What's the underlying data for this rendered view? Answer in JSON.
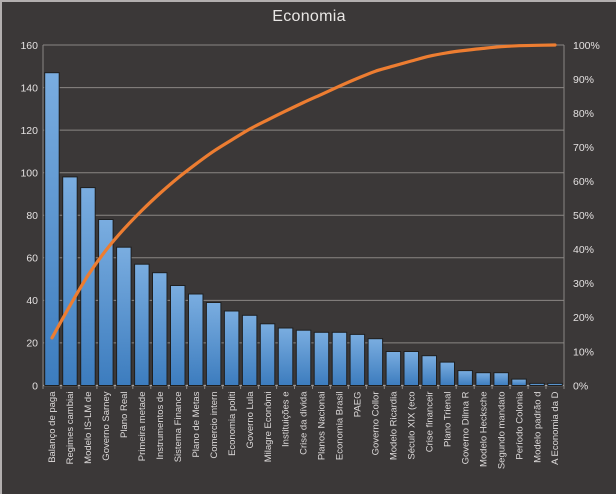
{
  "chart_data": {
    "type": "bar",
    "subtype": "pareto-combo",
    "title": "Economia",
    "categories": [
      "Balanço de paga",
      "Regimes cambiai",
      "Modelo IS-LM de",
      "Governo Sarney",
      "Plano Real",
      "Primeira metade",
      "Instrumentos de",
      "Sistema Finance",
      "Plano de Metas",
      "Comercio intern",
      "Economia politi",
      "Governo Lula",
      "Milagre Econômi",
      "Instituições e",
      "Crise da dívida",
      "Planos Nacionai",
      "Economia Brasil",
      "PAEG",
      "Governo Collor",
      "Modelo Ricardia",
      "Século XIX (eco",
      "Crise financeir",
      "Plano Trienal",
      "Governo Dilma R",
      "Modelo Hecksche",
      "Segundo mandato",
      "Período Colonia",
      "Modelo padrão d",
      "A Economia da D"
    ],
    "series": [
      {
        "name": "frequency-bars",
        "type": "bar",
        "values": [
          147,
          98,
          93,
          78,
          65,
          57,
          53,
          47,
          43,
          39,
          35,
          33,
          29,
          27,
          26,
          25,
          25,
          24,
          22,
          16,
          16,
          14,
          11,
          7,
          6,
          6,
          3,
          1,
          1
        ]
      },
      {
        "name": "cumulative-line",
        "type": "line",
        "values": [
          14.0,
          23.4,
          32.3,
          39.7,
          45.9,
          51.4,
          56.4,
          60.9,
          65.0,
          68.8,
          72.1,
          75.3,
          78.0,
          80.6,
          83.1,
          85.5,
          87.9,
          90.2,
          92.3,
          93.8,
          95.3,
          96.7,
          97.7,
          98.4,
          99.0,
          99.5,
          99.8,
          99.9,
          100.0
        ]
      }
    ],
    "left_axis": {
      "min": 0,
      "max": 160,
      "step": 20,
      "ticks": [
        "0",
        "20",
        "40",
        "60",
        "80",
        "100",
        "120",
        "140",
        "160"
      ]
    },
    "right_axis": {
      "min": 0,
      "max": 100,
      "step": 10,
      "ticks": [
        "0%",
        "10%",
        "20%",
        "30%",
        "40%",
        "50%",
        "60%",
        "70%",
        "80%",
        "90%",
        "100%"
      ]
    },
    "grid": true,
    "legend": "none",
    "colors": {
      "background": "#3b3838",
      "bar_fill_top": "#7aade0",
      "bar_fill_bottom": "#3c7cbe",
      "bar_border": "#1f1f1f",
      "line": "#ed7d31",
      "gridline": "#8a8683",
      "axis_line": "#b5b2b2",
      "tick_text": "#e3e0e0",
      "category_text": "#dedbdb",
      "title_text": "#e9e7e5"
    }
  }
}
